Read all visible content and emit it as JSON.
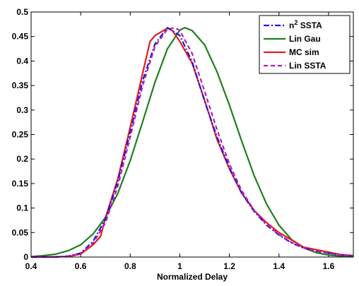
{
  "chart_data": {
    "type": "line",
    "title": "",
    "xlabel": "Normalized Delay",
    "ylabel": "",
    "xlim": [
      0.4,
      1.7
    ],
    "ylim": [
      0,
      0.5
    ],
    "x_ticks": [
      0.4,
      0.6,
      0.8,
      1.0,
      1.2,
      1.4,
      1.6
    ],
    "x_tick_labels": [
      "0.4",
      "0.6",
      "0.8",
      "1",
      "1.2",
      "1.4",
      "1.6"
    ],
    "y_ticks": [
      0,
      0.05,
      0.1,
      0.15,
      0.2,
      0.25,
      0.3,
      0.35,
      0.4,
      0.45,
      0.5
    ],
    "y_tick_labels": [
      "0",
      "0.05",
      "0.1",
      "0.15",
      "0.2",
      "0.25",
      "0.3",
      "0.35",
      "0.4",
      "0.45",
      "0.5"
    ],
    "grid": false,
    "legend_position": "top-right",
    "series": [
      {
        "name": "n2 SSTA",
        "legend_base": "n",
        "legend_sup": "2",
        "legend_rest": " SSTA",
        "color": "#1a1adb",
        "dash": "dashdot",
        "x": [
          0.4,
          0.5,
          0.55,
          0.6,
          0.65,
          0.7,
          0.75,
          0.8,
          0.85,
          0.9,
          0.95,
          1.0,
          1.05,
          1.1,
          1.15,
          1.2,
          1.25,
          1.3,
          1.35,
          1.4,
          1.45,
          1.5,
          1.55,
          1.6,
          1.65,
          1.7
        ],
        "y": [
          0,
          0.0,
          0.002,
          0.008,
          0.032,
          0.078,
          0.155,
          0.255,
          0.36,
          0.435,
          0.468,
          0.452,
          0.398,
          0.318,
          0.245,
          0.182,
          0.13,
          0.093,
          0.065,
          0.045,
          0.029,
          0.018,
          0.012,
          0.008,
          0.004,
          0.002
        ]
      },
      {
        "name": "Lin Gau",
        "legend_base": "Lin Gau",
        "legend_sup": "",
        "legend_rest": "",
        "color": "#1e7f1e",
        "dash": "solid",
        "x": [
          0.4,
          0.45,
          0.5,
          0.55,
          0.6,
          0.65,
          0.7,
          0.75,
          0.8,
          0.85,
          0.9,
          0.95,
          1.0,
          1.02,
          1.05,
          1.1,
          1.15,
          1.2,
          1.25,
          1.3,
          1.35,
          1.4,
          1.45,
          1.5,
          1.55,
          1.6,
          1.65,
          1.7
        ],
        "y": [
          0.001,
          0.003,
          0.006,
          0.013,
          0.025,
          0.047,
          0.081,
          0.13,
          0.197,
          0.276,
          0.357,
          0.425,
          0.463,
          0.468,
          0.462,
          0.433,
          0.378,
          0.31,
          0.236,
          0.166,
          0.108,
          0.065,
          0.036,
          0.019,
          0.009,
          0.004,
          0.002,
          0.001
        ]
      },
      {
        "name": "MC sim",
        "legend_base": "MC sim",
        "legend_sup": "",
        "legend_rest": "",
        "color": "#e51c1c",
        "dash": "solid",
        "x": [
          0.4,
          0.55,
          0.6,
          0.65,
          0.68,
          0.7,
          0.75,
          0.8,
          0.85,
          0.88,
          0.9,
          0.95,
          0.97,
          1.0,
          1.05,
          1.1,
          1.15,
          1.2,
          1.25,
          1.3,
          1.35,
          1.4,
          1.45,
          1.5,
          1.55,
          1.6,
          1.65,
          1.7
        ],
        "y": [
          0,
          0.001,
          0.006,
          0.025,
          0.042,
          0.08,
          0.16,
          0.265,
          0.375,
          0.44,
          0.452,
          0.467,
          0.462,
          0.44,
          0.395,
          0.32,
          0.24,
          0.18,
          0.13,
          0.095,
          0.07,
          0.05,
          0.035,
          0.02,
          0.015,
          0.01,
          0.005,
          0.003
        ]
      },
      {
        "name": "Lin SSTA",
        "legend_base": "Lin SSTA",
        "legend_sup": "",
        "legend_rest": "",
        "color": "#b81ab8",
        "dash": "dashed",
        "x": [
          0.4,
          0.5,
          0.55,
          0.6,
          0.65,
          0.7,
          0.75,
          0.8,
          0.85,
          0.9,
          0.95,
          0.98,
          1.0,
          1.05,
          1.1,
          1.15,
          1.2,
          1.25,
          1.3,
          1.35,
          1.4,
          1.45,
          1.5,
          1.55,
          1.6,
          1.65,
          1.7
        ],
        "y": [
          0,
          0.0,
          0.002,
          0.007,
          0.028,
          0.07,
          0.145,
          0.245,
          0.35,
          0.43,
          0.465,
          0.468,
          0.462,
          0.415,
          0.338,
          0.26,
          0.19,
          0.135,
          0.095,
          0.067,
          0.046,
          0.03,
          0.019,
          0.012,
          0.008,
          0.004,
          0.002
        ]
      }
    ]
  }
}
